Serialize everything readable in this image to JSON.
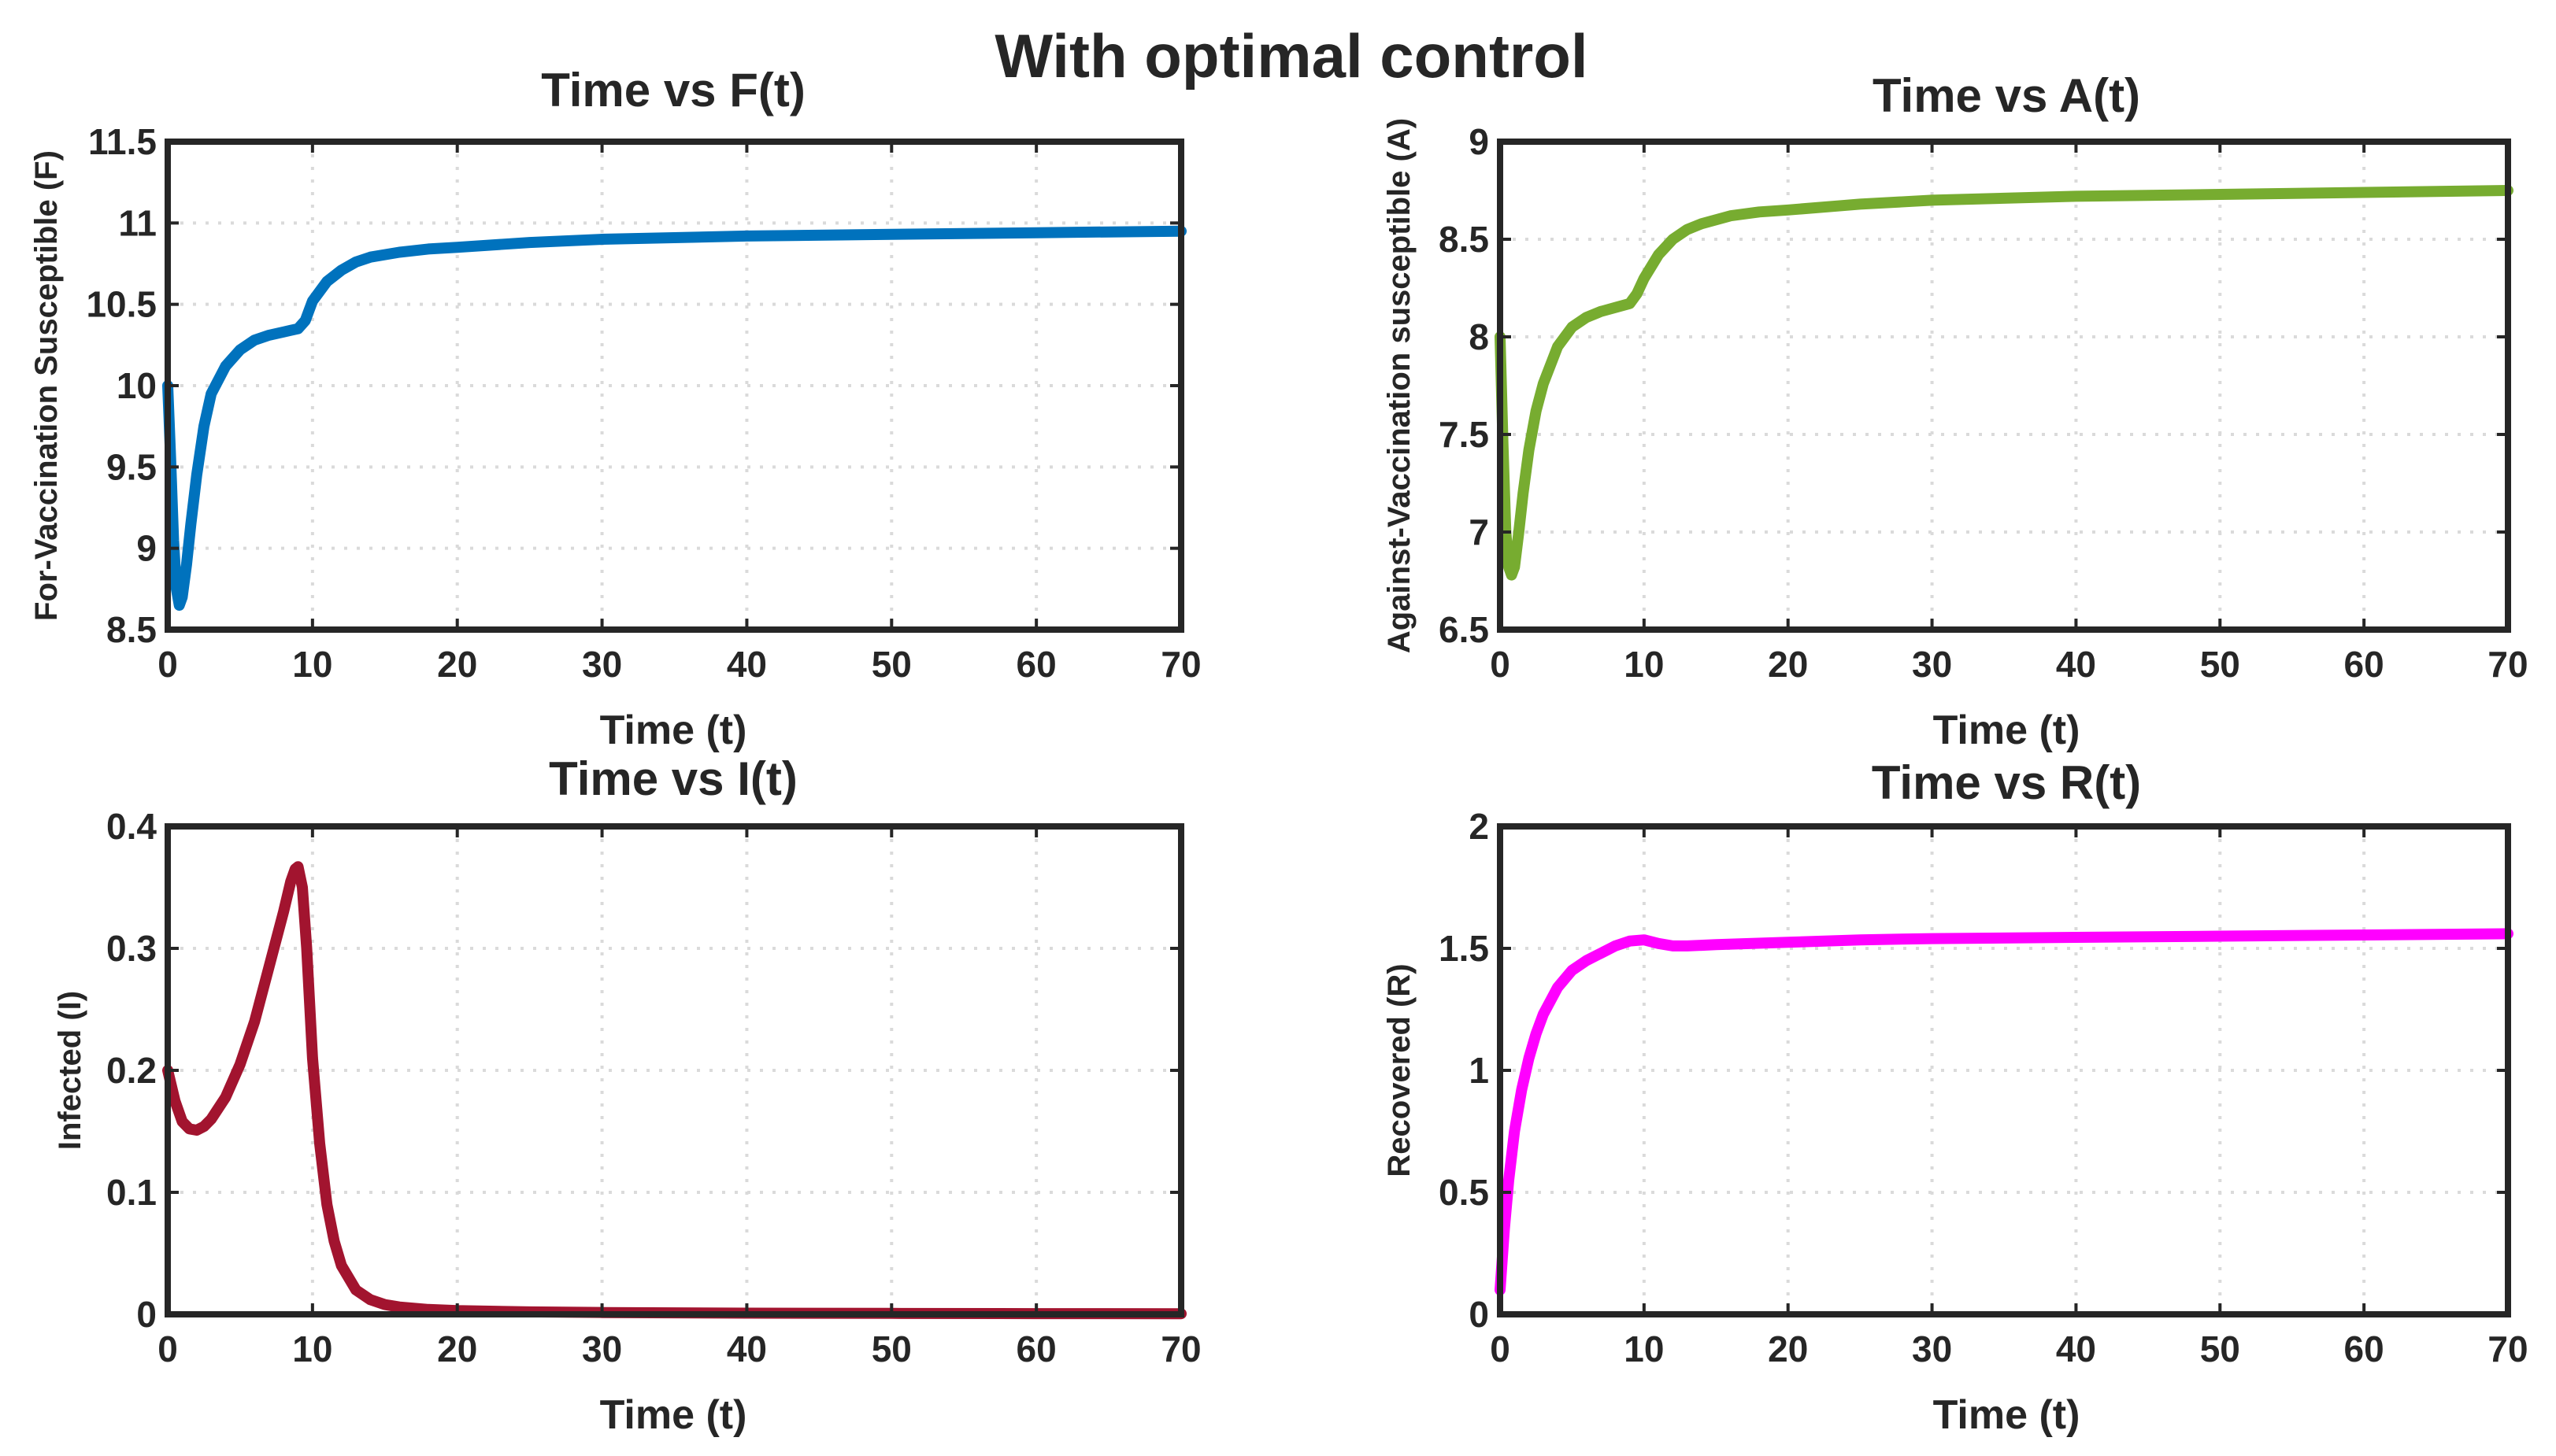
{
  "figure": {
    "suptitle": "With optimal control",
    "suptitle_color": "#D95319",
    "axis_color": "#262626",
    "grid_color": "#DADADA"
  },
  "chart_data": [
    {
      "type": "line",
      "id": "F",
      "title": "Time vs F(t)",
      "xlabel": "Time (t)",
      "ylabel": "For-Vaccination Susceptible (F)",
      "xlim": [
        0,
        70
      ],
      "ylim": [
        8.5,
        11.5
      ],
      "xticks": [
        0,
        10,
        20,
        30,
        40,
        50,
        60,
        70
      ],
      "xtick_labels": [
        "0",
        "10",
        "20",
        "30",
        "40",
        "50",
        "60",
        "70"
      ],
      "yticks": [
        8.5,
        9,
        9.5,
        10,
        10.5,
        11,
        11.5
      ],
      "ytick_labels": [
        "8.5",
        "9",
        "9.5",
        "10",
        "10.5",
        "11",
        "11.5"
      ],
      "grid": true,
      "series": [
        {
          "name": "F(t)",
          "color": "#0072BD",
          "x": [
            0,
            0.2,
            0.4,
            0.6,
            0.8,
            1.0,
            1.3,
            1.6,
            2,
            2.5,
            3,
            4,
            5,
            6,
            7,
            8,
            8.5,
            9,
            9.5,
            10,
            11,
            12,
            13,
            14,
            16,
            18,
            20,
            25,
            30,
            40,
            50,
            60,
            70
          ],
          "y": [
            10.0,
            9.55,
            9.05,
            8.75,
            8.65,
            8.7,
            8.9,
            9.15,
            9.45,
            9.75,
            9.95,
            10.12,
            10.22,
            10.28,
            10.31,
            10.33,
            10.34,
            10.35,
            10.4,
            10.52,
            10.64,
            10.71,
            10.76,
            10.79,
            10.82,
            10.84,
            10.85,
            10.88,
            10.9,
            10.92,
            10.93,
            10.94,
            10.95
          ]
        }
      ]
    },
    {
      "type": "line",
      "id": "A",
      "title": "Time vs A(t)",
      "xlabel": "Time (t)",
      "ylabel": "Against-Vaccination susceptible (A)",
      "xlim": [
        0,
        70
      ],
      "ylim": [
        6.5,
        9
      ],
      "xticks": [
        0,
        10,
        20,
        30,
        40,
        50,
        60,
        70
      ],
      "xtick_labels": [
        "0",
        "10",
        "20",
        "30",
        "40",
        "50",
        "60",
        "70"
      ],
      "yticks": [
        6.5,
        7,
        7.5,
        8,
        8.5,
        9
      ],
      "ytick_labels": [
        "6.5",
        "7",
        "7.5",
        "8",
        "8.5",
        "9"
      ],
      "grid": true,
      "series": [
        {
          "name": "A(t)",
          "color": "#77AC30",
          "x": [
            0,
            0.2,
            0.4,
            0.6,
            0.8,
            1.0,
            1.3,
            1.6,
            2,
            2.5,
            3,
            4,
            5,
            6,
            7,
            8,
            8.5,
            9,
            9.5,
            10,
            11,
            12,
            13,
            14,
            16,
            18,
            20,
            25,
            30,
            40,
            50,
            60,
            70
          ],
          "y": [
            8.0,
            7.45,
            7.0,
            6.82,
            6.78,
            6.82,
            7.0,
            7.2,
            7.42,
            7.62,
            7.76,
            7.95,
            8.05,
            8.1,
            8.13,
            8.15,
            8.16,
            8.17,
            8.22,
            8.3,
            8.42,
            8.5,
            8.55,
            8.58,
            8.62,
            8.64,
            8.65,
            8.68,
            8.7,
            8.72,
            8.73,
            8.74,
            8.75
          ]
        }
      ]
    },
    {
      "type": "line",
      "id": "I",
      "title": "Time vs I(t)",
      "xlabel": "Time (t)",
      "ylabel": "Infected (I)",
      "xlim": [
        0,
        70
      ],
      "ylim": [
        0,
        0.4
      ],
      "xticks": [
        0,
        10,
        20,
        30,
        40,
        50,
        60,
        70
      ],
      "xtick_labels": [
        "0",
        "10",
        "20",
        "30",
        "40",
        "50",
        "60",
        "70"
      ],
      "yticks": [
        0,
        0.1,
        0.2,
        0.3,
        0.4
      ],
      "ytick_labels": [
        "0",
        "0.1",
        "0.2",
        "0.3",
        "0.4"
      ],
      "grid": true,
      "series": [
        {
          "name": "I(t)",
          "color": "#A2142F",
          "x": [
            0,
            0.5,
            1,
            1.5,
            2,
            2.5,
            3,
            4,
            5,
            6,
            7,
            8,
            8.5,
            8.8,
            9.0,
            9.3,
            9.6,
            10,
            10.5,
            11,
            11.5,
            12,
            13,
            14,
            15,
            16,
            18,
            20,
            25,
            30,
            40,
            50,
            60,
            70
          ],
          "y": [
            0.2,
            0.175,
            0.158,
            0.152,
            0.151,
            0.154,
            0.16,
            0.178,
            0.205,
            0.24,
            0.285,
            0.33,
            0.355,
            0.365,
            0.367,
            0.35,
            0.3,
            0.21,
            0.14,
            0.09,
            0.06,
            0.04,
            0.02,
            0.012,
            0.008,
            0.006,
            0.004,
            0.003,
            0.002,
            0.0015,
            0.001,
            0.0008,
            0.0006,
            0.0005
          ]
        }
      ]
    },
    {
      "type": "line",
      "id": "R",
      "title": "Time vs R(t)",
      "xlabel": "Time (t)",
      "ylabel": "Recovered (R)",
      "xlim": [
        0,
        70
      ],
      "ylim": [
        0,
        2
      ],
      "xticks": [
        0,
        10,
        20,
        30,
        40,
        50,
        60,
        70
      ],
      "xtick_labels": [
        "0",
        "10",
        "20",
        "30",
        "40",
        "50",
        "60",
        "70"
      ],
      "yticks": [
        0,
        0.5,
        1,
        1.5,
        2
      ],
      "ytick_labels": [
        "0",
        "0.5",
        "1",
        "1.5",
        "2"
      ],
      "grid": true,
      "series": [
        {
          "name": "R(t)",
          "color": "#FF00FF",
          "x": [
            0,
            0.3,
            0.6,
            1,
            1.5,
            2,
            2.5,
            3,
            4,
            5,
            6,
            7,
            8,
            9,
            10,
            11,
            12,
            13,
            15,
            20,
            25,
            30,
            40,
            50,
            60,
            70
          ],
          "y": [
            0.1,
            0.35,
            0.55,
            0.75,
            0.92,
            1.05,
            1.15,
            1.23,
            1.34,
            1.41,
            1.45,
            1.48,
            1.51,
            1.53,
            1.535,
            1.52,
            1.51,
            1.51,
            1.515,
            1.525,
            1.535,
            1.54,
            1.545,
            1.55,
            1.555,
            1.56
          ]
        }
      ]
    }
  ]
}
